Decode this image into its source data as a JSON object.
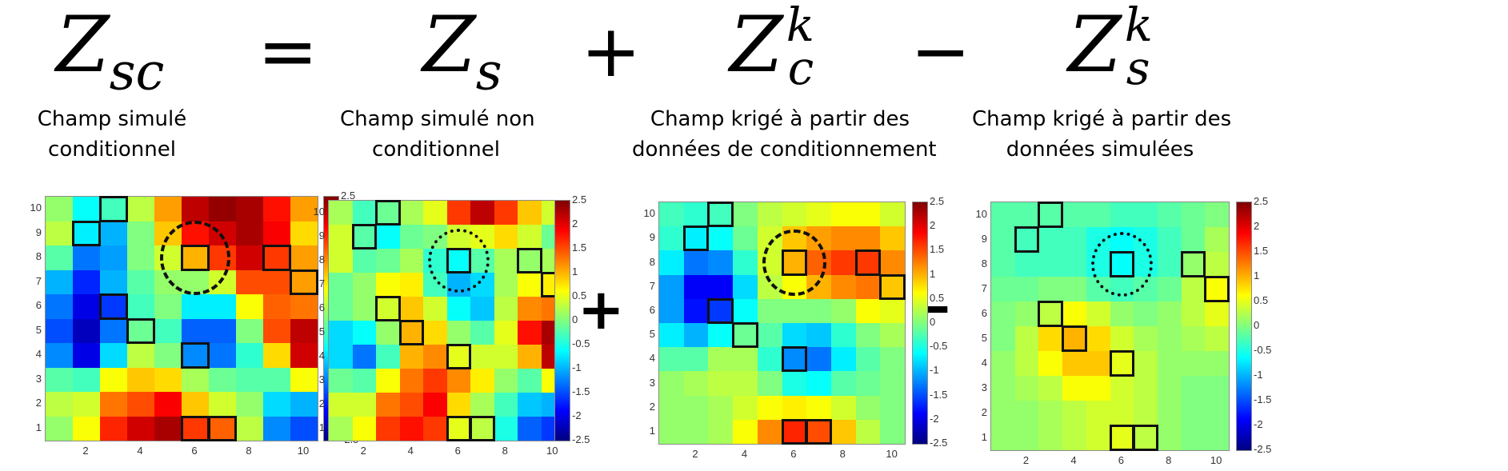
{
  "equation": {
    "lhs": {
      "base": "Z",
      "sub": "sc",
      "sup": ""
    },
    "terms": [
      {
        "base": "Z",
        "sub": "s",
        "sup": ""
      },
      {
        "base": "Z",
        "sub": "c",
        "sup": "k"
      },
      {
        "base": "Z",
        "sub": "s",
        "sup": "k"
      }
    ],
    "operators": [
      "=",
      "+",
      "−"
    ],
    "mid_operators": [
      "=",
      "+",
      "−"
    ]
  },
  "captions": [
    {
      "line1": "Champ simulé",
      "line2": "conditionnel"
    },
    {
      "line1": "Champ simulé non",
      "line2": "conditionnel"
    },
    {
      "line1": "Champ krigé à partir des",
      "line2": "données de conditionnement"
    },
    {
      "line1": "Champ krigé à partir des",
      "line2": "données simulées"
    }
  ],
  "axes": {
    "xticks": [
      "2",
      "4",
      "6",
      "8",
      "10"
    ],
    "yticks": [
      "10",
      "9",
      "8",
      "7",
      "6",
      "5",
      "4",
      "3",
      "2",
      "1"
    ],
    "colorbar_ticks": [
      "2.5",
      "2",
      "1.5",
      "1",
      "0.5",
      "0",
      "-0.5",
      "-1",
      "-1.5",
      "-2",
      "-2.5"
    ],
    "clim": [
      -2.5,
      2.5
    ],
    "colormap": "jet"
  },
  "chart_data": [
    {
      "type": "heatmap",
      "title": "Champ simulé conditionnel (Z_sc)",
      "x": [
        1,
        2,
        3,
        4,
        5,
        6,
        7,
        8,
        9,
        10
      ],
      "y": [
        10,
        9,
        8,
        7,
        6,
        5,
        4,
        3,
        2,
        1
      ],
      "values": [
        [
          0.1,
          -0.6,
          -0.3,
          0.3,
          1.1,
          2.2,
          2.4,
          2.3,
          1.8,
          1.1
        ],
        [
          0.3,
          -0.7,
          -1.0,
          0.0,
          0.9,
          1.8,
          2.1,
          2.3,
          1.9,
          0.8
        ],
        [
          -0.2,
          -1.3,
          -1.1,
          0.0,
          0.4,
          1.0,
          1.6,
          2.1,
          1.6,
          1.1
        ],
        [
          -1.0,
          -1.7,
          -1.0,
          -0.2,
          0.1,
          0.1,
          0.4,
          1.5,
          1.5,
          1.1
        ],
        [
          -1.3,
          -2.0,
          -1.6,
          -0.3,
          0.0,
          -0.7,
          -0.7,
          0.6,
          1.4,
          1.3
        ],
        [
          -1.5,
          -2.2,
          -1.3,
          -0.1,
          -0.3,
          -1.4,
          -1.4,
          0.0,
          1.5,
          2.2
        ],
        [
          -1.2,
          -2.0,
          -0.8,
          0.3,
          0.0,
          -1.2,
          -1.3,
          -0.4,
          0.8,
          2.1
        ],
        [
          -0.2,
          -0.3,
          0.6,
          0.9,
          0.8,
          0.2,
          -0.1,
          -0.2,
          -0.2,
          0.6
        ],
        [
          0.3,
          0.4,
          1.3,
          1.5,
          1.9,
          0.9,
          0.4,
          0.1,
          -0.8,
          -1.0
        ],
        [
          0.1,
          0.6,
          1.7,
          2.1,
          2.3,
          1.6,
          1.4,
          0.3,
          -1.2,
          -1.5
        ]
      ],
      "markers": [
        [
          3,
          10
        ],
        [
          2,
          9
        ],
        [
          6,
          8
        ],
        [
          9,
          8
        ],
        [
          10,
          7
        ],
        [
          3,
          6
        ],
        [
          4,
          5
        ],
        [
          6,
          4
        ],
        [
          6,
          1
        ],
        [
          7,
          1
        ]
      ],
      "circle": {
        "center": [
          6,
          8
        ],
        "style": "dash-dot"
      },
      "xlabel": "",
      "ylabel": "",
      "xlim": [
        0.5,
        10.5
      ],
      "ylim": [
        0.5,
        10.5
      ]
    },
    {
      "type": "heatmap",
      "title": "Champ simulé non conditionnel (Z_s)",
      "x": [
        1,
        2,
        3,
        4,
        5,
        6,
        7,
        8,
        9,
        10
      ],
      "y": [
        10,
        9,
        8,
        7,
        6,
        5,
        4,
        3,
        2,
        1
      ],
      "values": [
        [
          0.2,
          -0.3,
          -0.1,
          0.2,
          0.5,
          1.6,
          2.2,
          1.6,
          0.9,
          0.4
        ],
        [
          0.4,
          -0.2,
          -0.6,
          -0.1,
          0.0,
          0.4,
          0.5,
          0.8,
          0.4,
          -0.1
        ],
        [
          0.4,
          -0.2,
          -0.1,
          0.2,
          -0.4,
          -0.6,
          -0.2,
          0.2,
          0.1,
          0.2
        ],
        [
          -0.1,
          0.1,
          0.6,
          0.7,
          -0.3,
          -1.0,
          -0.8,
          0.2,
          0.6,
          0.7
        ],
        [
          -0.1,
          0.1,
          0.4,
          0.9,
          0.4,
          -0.6,
          -0.9,
          0.3,
          1.2,
          1.3
        ],
        [
          -0.8,
          -0.6,
          0.1,
          1.0,
          0.8,
          0.1,
          -0.2,
          0.5,
          1.8,
          2.3
        ],
        [
          -0.8,
          -1.3,
          -0.3,
          1.0,
          1.2,
          0.5,
          0.4,
          0.4,
          1.0,
          2.2
        ],
        [
          -0.1,
          -0.2,
          0.6,
          1.3,
          1.6,
          1.2,
          0.7,
          0.1,
          -0.2,
          0.6
        ],
        [
          0.4,
          0.4,
          1.3,
          1.5,
          1.9,
          0.8,
          0.2,
          -0.3,
          -0.9,
          -1.0
        ],
        [
          0.2,
          0.6,
          1.6,
          1.8,
          1.6,
          0.5,
          0.3,
          -0.5,
          -1.4,
          -1.6
        ]
      ],
      "markers": [
        [
          3,
          10
        ],
        [
          2,
          9
        ],
        [
          6,
          8
        ],
        [
          9,
          8
        ],
        [
          10,
          7
        ],
        [
          3,
          6
        ],
        [
          4,
          5
        ],
        [
          6,
          4
        ],
        [
          6,
          1
        ],
        [
          7,
          1
        ]
      ],
      "circle": {
        "center": [
          6,
          8
        ],
        "style": "dotted"
      },
      "xlabel": "",
      "ylabel": "",
      "xlim": [
        0.5,
        10.5
      ],
      "ylim": [
        0.5,
        10.5
      ]
    },
    {
      "type": "heatmap",
      "title": "Champ krigé à partir des données de conditionnement (Z_c^k)",
      "x": [
        1,
        2,
        3,
        4,
        5,
        6,
        7,
        8,
        9,
        10
      ],
      "y": [
        10,
        9,
        8,
        7,
        6,
        5,
        4,
        3,
        2,
        1
      ],
      "values": [
        [
          -0.3,
          -0.4,
          -0.3,
          0.0,
          0.3,
          0.4,
          0.5,
          0.6,
          0.6,
          0.4
        ],
        [
          -0.4,
          -0.7,
          -0.6,
          -0.1,
          0.4,
          0.9,
          1.1,
          1.2,
          1.2,
          0.9
        ],
        [
          -0.7,
          -1.3,
          -1.2,
          -0.4,
          0.4,
          1.0,
          1.4,
          1.6,
          1.6,
          1.2
        ],
        [
          -1.1,
          -1.9,
          -1.9,
          -0.8,
          0.3,
          0.6,
          1.0,
          1.2,
          1.3,
          0.9
        ],
        [
          -1.1,
          -1.8,
          -1.6,
          -0.6,
          0.0,
          0.0,
          0.0,
          0.1,
          0.6,
          0.5
        ],
        [
          -0.7,
          -1.0,
          -0.6,
          -0.1,
          -0.2,
          -0.8,
          -0.9,
          -0.4,
          0.0,
          0.2
        ],
        [
          -0.2,
          -0.2,
          0.2,
          0.2,
          -0.4,
          -1.2,
          -1.3,
          -0.7,
          -0.2,
          0.0
        ],
        [
          0.1,
          0.2,
          0.3,
          0.3,
          0.0,
          -0.5,
          -0.6,
          -0.2,
          -0.1,
          0.0
        ],
        [
          0.1,
          0.1,
          0.2,
          0.4,
          0.6,
          0.7,
          0.6,
          0.4,
          0.1,
          0.0
        ],
        [
          0.1,
          0.1,
          0.2,
          0.6,
          1.2,
          1.7,
          1.5,
          0.9,
          0.3,
          0.0
        ]
      ],
      "markers": [
        [
          3,
          10
        ],
        [
          2,
          9
        ],
        [
          6,
          8
        ],
        [
          9,
          8
        ],
        [
          10,
          7
        ],
        [
          3,
          6
        ],
        [
          4,
          5
        ],
        [
          6,
          4
        ],
        [
          6,
          1
        ],
        [
          7,
          1
        ]
      ],
      "circle": {
        "center": [
          6,
          8
        ],
        "style": "dash-dot"
      },
      "xlabel": "",
      "ylabel": "",
      "xlim": [
        0.5,
        10.5
      ],
      "ylim": [
        0.5,
        10.5
      ]
    },
    {
      "type": "heatmap",
      "title": "Champ krigé à partir des données simulées (Z_s^k)",
      "x": [
        1,
        2,
        3,
        4,
        5,
        6,
        7,
        8,
        9,
        10
      ],
      "y": [
        10,
        9,
        8,
        7,
        6,
        5,
        4,
        3,
        2,
        1
      ],
      "values": [
        [
          -0.2,
          -0.2,
          -0.2,
          -0.2,
          -0.2,
          -0.3,
          -0.3,
          -0.2,
          -0.1,
          0.0
        ],
        [
          -0.2,
          -0.3,
          -0.3,
          -0.3,
          -0.5,
          -0.6,
          -0.5,
          -0.3,
          -0.1,
          0.2
        ],
        [
          -0.2,
          -0.3,
          -0.3,
          -0.3,
          -0.5,
          -0.6,
          -0.5,
          -0.3,
          0.1,
          0.3
        ],
        [
          -0.1,
          -0.1,
          0.0,
          0.0,
          -0.2,
          -0.3,
          -0.2,
          -0.1,
          0.3,
          0.6
        ],
        [
          0.0,
          0.1,
          0.3,
          0.6,
          0.4,
          0.1,
          0.0,
          0.1,
          0.3,
          0.5
        ],
        [
          0.0,
          0.3,
          0.8,
          1.0,
          0.8,
          0.4,
          0.2,
          0.1,
          0.2,
          0.3
        ],
        [
          0.1,
          0.3,
          0.6,
          0.9,
          0.9,
          0.5,
          0.3,
          0.1,
          0.1,
          0.1
        ],
        [
          0.1,
          0.2,
          0.3,
          0.6,
          0.6,
          0.4,
          0.3,
          0.1,
          0.0,
          0.0
        ],
        [
          0.1,
          0.1,
          0.2,
          0.3,
          0.4,
          0.4,
          0.3,
          0.1,
          0.0,
          0.0
        ],
        [
          0.1,
          0.1,
          0.2,
          0.3,
          0.4,
          0.5,
          0.3,
          0.1,
          0.0,
          0.0
        ]
      ],
      "markers": [
        [
          3,
          10
        ],
        [
          2,
          9
        ],
        [
          6,
          8
        ],
        [
          9,
          8
        ],
        [
          10,
          7
        ],
        [
          3,
          6
        ],
        [
          4,
          5
        ],
        [
          6,
          4
        ],
        [
          6,
          1
        ],
        [
          7,
          1
        ]
      ],
      "circle": {
        "center": [
          6,
          8
        ],
        "style": "dotted"
      },
      "xlabel": "",
      "ylabel": "",
      "xlim": [
        0.5,
        10.5
      ],
      "ylim": [
        0.5,
        10.5
      ]
    }
  ]
}
